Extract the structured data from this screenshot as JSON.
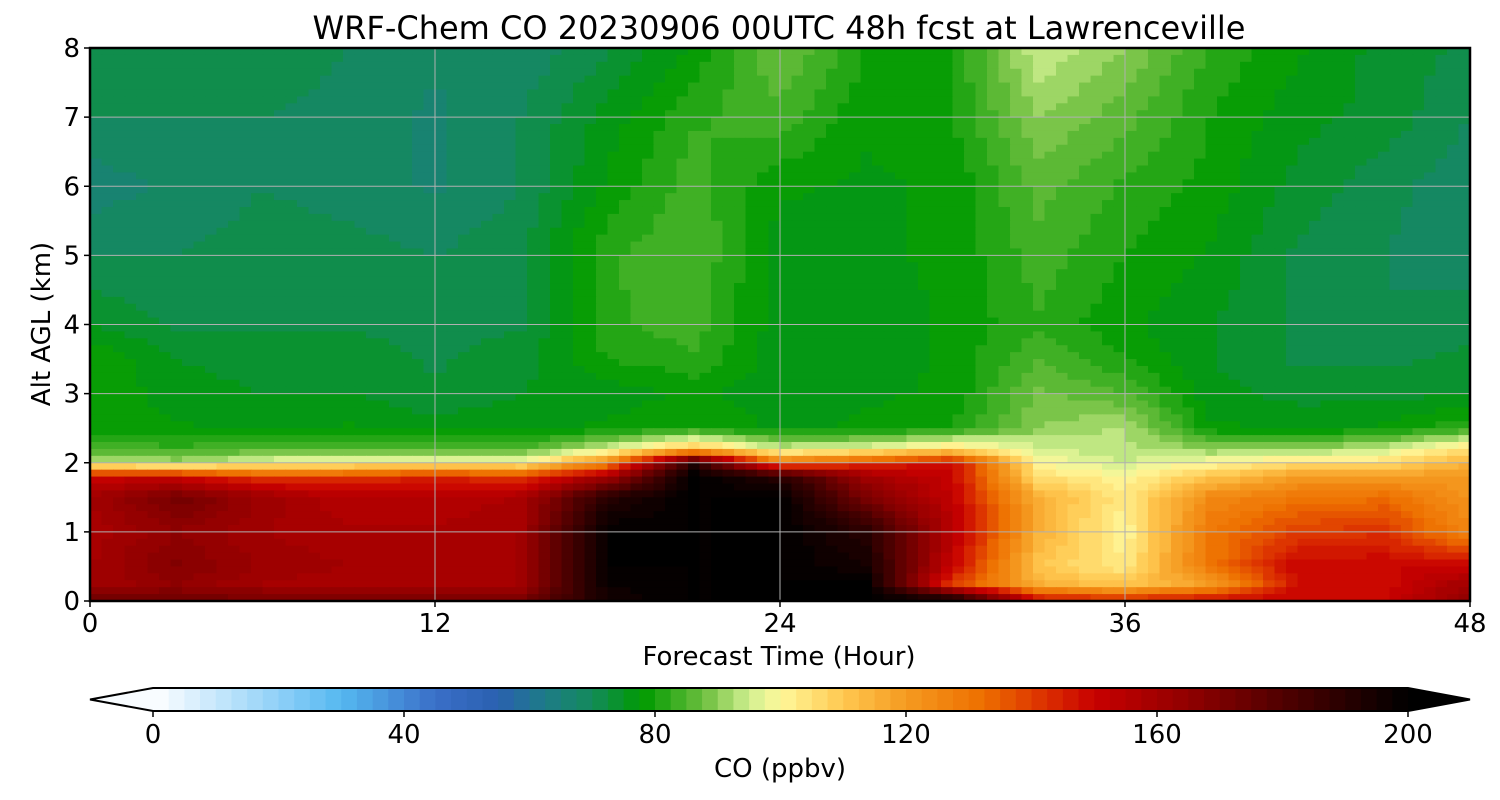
{
  "chart_data": {
    "type": "heatmap",
    "title": "WRF-Chem CO  20230906 00UTC 48h fcst at Lawrenceville",
    "xlabel": "Forecast Time (Hour)",
    "ylabel": "Alt AGL (km)",
    "xlim": [
      0,
      48
    ],
    "ylim": [
      0,
      8
    ],
    "x_ticks": [
      0,
      12,
      24,
      36,
      48
    ],
    "y_ticks": [
      0,
      1,
      2,
      3,
      4,
      5,
      6,
      7,
      8
    ],
    "grid": true,
    "colorbar": {
      "label": "CO  (ppbv)",
      "min": 0,
      "max": 200,
      "step": 2.5,
      "ticks": [
        0,
        40,
        80,
        120,
        160,
        200
      ],
      "extend": "both",
      "placement": "bottom",
      "color_stops": [
        {
          "value": 0,
          "color": "#ffffff"
        },
        {
          "value": 20,
          "color": "#8fd0f8"
        },
        {
          "value": 30,
          "color": "#55b8f0"
        },
        {
          "value": 45,
          "color": "#3a6fc8"
        },
        {
          "value": 55,
          "color": "#2a60b0"
        },
        {
          "value": 62,
          "color": "#1e7a8a"
        },
        {
          "value": 70,
          "color": "#138a5a"
        },
        {
          "value": 78,
          "color": "#009a00"
        },
        {
          "value": 88,
          "color": "#70c040"
        },
        {
          "value": 95,
          "color": "#d0f090"
        },
        {
          "value": 100,
          "color": "#fff89a"
        },
        {
          "value": 110,
          "color": "#ffc850"
        },
        {
          "value": 120,
          "color": "#f59a20"
        },
        {
          "value": 132,
          "color": "#ee7000"
        },
        {
          "value": 142,
          "color": "#dc3000"
        },
        {
          "value": 150,
          "color": "#c80000"
        },
        {
          "value": 165,
          "color": "#900000"
        },
        {
          "value": 180,
          "color": "#500000"
        },
        {
          "value": 200,
          "color": "#000000"
        }
      ]
    },
    "x_hours": [
      0,
      3,
      6,
      9,
      12,
      15,
      18,
      21,
      24,
      27,
      30,
      33,
      36,
      39,
      42,
      45,
      48
    ],
    "y_km": [
      0,
      0.25,
      0.5,
      1.0,
      1.5,
      1.8,
      2.0,
      2.2,
      2.5,
      3.0,
      3.5,
      4.0,
      5.0,
      6.0,
      7.0,
      8.0
    ],
    "values_ppbv": [
      [
        175,
        172,
        172,
        172,
        172,
        172,
        195,
        200,
        200,
        200,
        200,
        150,
        145,
        150,
        150,
        150,
        165
      ],
      [
        160,
        165,
        160,
        158,
        158,
        160,
        198,
        200,
        200,
        200,
        140,
        115,
        110,
        120,
        148,
        148,
        160
      ],
      [
        160,
        168,
        162,
        160,
        158,
        160,
        200,
        200,
        200,
        195,
        150,
        110,
        103,
        130,
        150,
        150,
        150
      ],
      [
        158,
        165,
        160,
        158,
        158,
        160,
        200,
        200,
        200,
        190,
        155,
        115,
        100,
        130,
        140,
        142,
        125
      ],
      [
        160,
        172,
        162,
        155,
        155,
        158,
        190,
        200,
        200,
        170,
        152,
        115,
        103,
        125,
        130,
        132,
        122
      ],
      [
        150,
        150,
        140,
        140,
        145,
        140,
        160,
        200,
        190,
        160,
        150,
        105,
        100,
        110,
        120,
        120,
        120
      ],
      [
        95,
        92,
        98,
        100,
        100,
        100,
        125,
        190,
        130,
        140,
        150,
        100,
        95,
        100,
        105,
        105,
        115
      ],
      [
        85,
        83,
        85,
        86,
        85,
        85,
        95,
        112,
        95,
        98,
        105,
        95,
        93,
        90,
        90,
        95,
        105
      ],
      [
        78,
        78,
        76,
        78,
        76,
        77,
        78,
        80,
        77,
        78,
        80,
        90,
        93,
        78,
        77,
        78,
        82
      ],
      [
        80,
        76,
        75,
        75,
        73,
        75,
        76,
        78,
        76,
        77,
        78,
        88,
        85,
        76,
        74,
        74,
        75
      ],
      [
        80,
        75,
        74,
        74,
        72,
        74,
        80,
        82,
        76,
        76,
        78,
        85,
        80,
        75,
        72,
        72,
        73
      ],
      [
        75,
        72,
        72,
        72,
        72,
        72,
        82,
        84,
        76,
        76,
        78,
        82,
        78,
        75,
        72,
        70,
        72
      ],
      [
        70,
        70,
        71,
        71,
        70,
        72,
        82,
        85,
        76,
        77,
        78,
        84,
        80,
        77,
        72,
        70,
        68
      ],
      [
        66,
        68,
        70,
        69,
        67,
        70,
        78,
        84,
        78,
        77,
        78,
        86,
        82,
        79,
        74,
        71,
        68
      ],
      [
        70,
        70,
        70,
        69,
        67,
        70,
        76,
        82,
        84,
        78,
        80,
        90,
        86,
        80,
        76,
        74,
        70
      ],
      [
        70,
        72,
        72,
        70,
        68,
        68,
        72,
        78,
        88,
        80,
        80,
        95,
        90,
        82,
        78,
        74,
        72
      ]
    ]
  }
}
